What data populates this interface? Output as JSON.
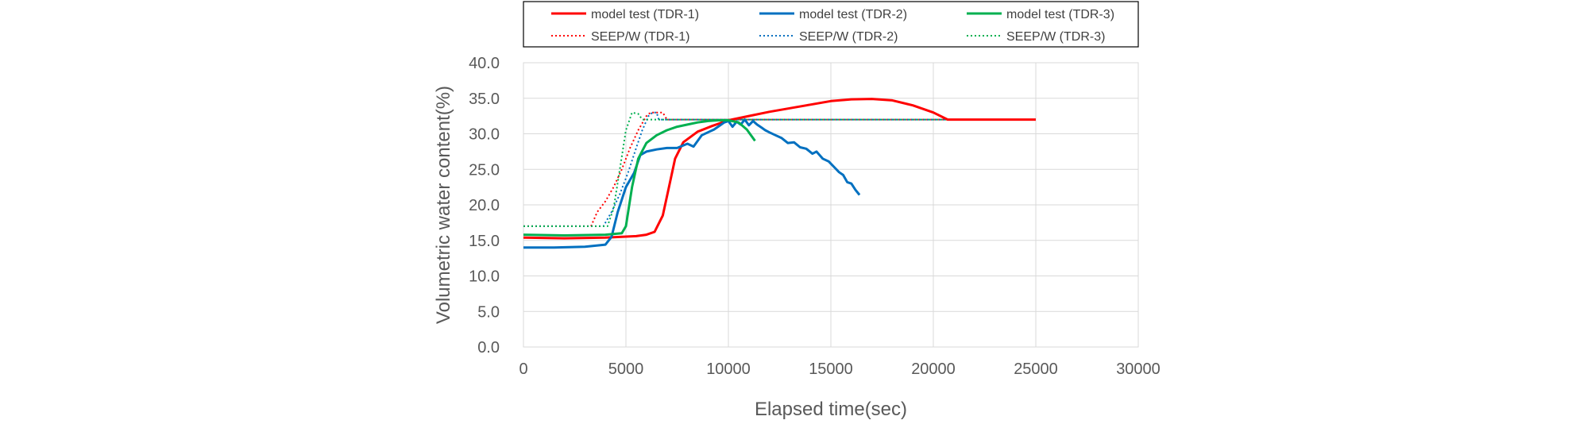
{
  "chart_data": {
    "type": "line",
    "title": "",
    "xlabel": "Elapsed time(sec)",
    "ylabel": "Volumetric water content(%)",
    "xlim": [
      0,
      30000
    ],
    "ylim": [
      0,
      40
    ],
    "x_ticks": [
      0,
      5000,
      10000,
      15000,
      20000,
      25000,
      30000
    ],
    "y_ticks": [
      "0.0",
      "5.0",
      "10.0",
      "15.0",
      "20.0",
      "25.0",
      "30.0",
      "35.0",
      "40.0"
    ],
    "grid": true,
    "legend_position": "top",
    "series": [
      {
        "name": "model test (TDR-1)",
        "color": "#ff0000",
        "style": "solid",
        "points": [
          [
            0,
            15.4
          ],
          [
            2000,
            15.3
          ],
          [
            4000,
            15.4
          ],
          [
            5500,
            15.6
          ],
          [
            6000,
            15.8
          ],
          [
            6400,
            16.2
          ],
          [
            6800,
            18.5
          ],
          [
            7100,
            22.5
          ],
          [
            7400,
            26.5
          ],
          [
            7800,
            28.8
          ],
          [
            8500,
            30.3
          ],
          [
            9200,
            31.1
          ],
          [
            10000,
            31.9
          ],
          [
            11000,
            32.5
          ],
          [
            12000,
            33.1
          ],
          [
            13000,
            33.6
          ],
          [
            14000,
            34.1
          ],
          [
            15000,
            34.6
          ],
          [
            16000,
            34.85
          ],
          [
            17000,
            34.9
          ],
          [
            18000,
            34.7
          ],
          [
            19000,
            34.0
          ],
          [
            20000,
            33.0
          ],
          [
            20700,
            32.0
          ],
          [
            25000,
            32.0
          ]
        ]
      },
      {
        "name": "model test (TDR-2)",
        "color": "#0070c0",
        "style": "solid",
        "points": [
          [
            0,
            14.0
          ],
          [
            1500,
            14.0
          ],
          [
            3000,
            14.1
          ],
          [
            4000,
            14.4
          ],
          [
            4300,
            15.5
          ],
          [
            4600,
            19.0
          ],
          [
            5000,
            22.5
          ],
          [
            5400,
            24.5
          ],
          [
            5700,
            27.0
          ],
          [
            6000,
            27.5
          ],
          [
            6500,
            27.8
          ],
          [
            7000,
            28.0
          ],
          [
            7500,
            28.0
          ],
          [
            8000,
            28.6
          ],
          [
            8300,
            28.2
          ],
          [
            8700,
            29.8
          ],
          [
            9000,
            30.2
          ],
          [
            9300,
            30.6
          ],
          [
            9600,
            31.2
          ],
          [
            9800,
            31.6
          ],
          [
            10000,
            31.8
          ],
          [
            10200,
            31.0
          ],
          [
            10400,
            31.7
          ],
          [
            10600,
            31.3
          ],
          [
            10800,
            32.0
          ],
          [
            11000,
            31.2
          ],
          [
            11200,
            31.8
          ],
          [
            11400,
            31.3
          ],
          [
            11600,
            30.9
          ],
          [
            11800,
            30.5
          ],
          [
            12000,
            30.2
          ],
          [
            12300,
            29.8
          ],
          [
            12600,
            29.4
          ],
          [
            12900,
            28.7
          ],
          [
            13200,
            28.8
          ],
          [
            13500,
            28.1
          ],
          [
            13800,
            27.9
          ],
          [
            14100,
            27.2
          ],
          [
            14300,
            27.5
          ],
          [
            14600,
            26.5
          ],
          [
            14900,
            26.1
          ],
          [
            15200,
            25.2
          ],
          [
            15400,
            24.6
          ],
          [
            15600,
            24.2
          ],
          [
            15800,
            23.2
          ],
          [
            16000,
            23.0
          ],
          [
            16200,
            22.1
          ],
          [
            16400,
            21.4
          ]
        ]
      },
      {
        "name": "model test (TDR-3)",
        "color": "#00b050",
        "style": "solid",
        "points": [
          [
            0,
            15.8
          ],
          [
            2000,
            15.7
          ],
          [
            4000,
            15.8
          ],
          [
            4800,
            16.0
          ],
          [
            5000,
            17.0
          ],
          [
            5300,
            22.5
          ],
          [
            5600,
            26.5
          ],
          [
            6000,
            28.7
          ],
          [
            6500,
            29.8
          ],
          [
            7000,
            30.5
          ],
          [
            7500,
            31.0
          ],
          [
            8000,
            31.3
          ],
          [
            8500,
            31.6
          ],
          [
            9000,
            31.8
          ],
          [
            9500,
            31.9
          ],
          [
            10000,
            31.9
          ],
          [
            10500,
            31.6
          ],
          [
            10900,
            30.6
          ],
          [
            11300,
            29.0
          ]
        ]
      },
      {
        "name": "SEEP/W (TDR-1)",
        "color": "#ff0000",
        "style": "dotted",
        "points": [
          [
            0,
            17.0
          ],
          [
            3300,
            17.0
          ],
          [
            3600,
            19.0
          ],
          [
            4000,
            20.5
          ],
          [
            4400,
            22.5
          ],
          [
            4800,
            25.0
          ],
          [
            5200,
            28.0
          ],
          [
            5600,
            30.5
          ],
          [
            6000,
            32.5
          ],
          [
            6200,
            33.0
          ],
          [
            6800,
            33.0
          ],
          [
            7000,
            32.0
          ],
          [
            25000,
            32.0
          ]
        ]
      },
      {
        "name": "SEEP/W (TDR-2)",
        "color": "#0070c0",
        "style": "dotted",
        "points": [
          [
            0,
            17.0
          ],
          [
            3900,
            17.0
          ],
          [
            4300,
            19.0
          ],
          [
            4700,
            21.5
          ],
          [
            5100,
            24.5
          ],
          [
            5500,
            28.0
          ],
          [
            5800,
            30.5
          ],
          [
            6100,
            32.5
          ],
          [
            6300,
            33.0
          ],
          [
            6500,
            33.0
          ],
          [
            6600,
            32.0
          ],
          [
            25000,
            32.0
          ]
        ]
      },
      {
        "name": "SEEP/W (TDR-3)",
        "color": "#00b050",
        "style": "dotted",
        "points": [
          [
            0,
            17.0
          ],
          [
            4100,
            17.0
          ],
          [
            4400,
            19.5
          ],
          [
            4700,
            25.0
          ],
          [
            5000,
            30.5
          ],
          [
            5300,
            33.0
          ],
          [
            5600,
            32.8
          ],
          [
            5800,
            32.0
          ],
          [
            25000,
            32.0
          ]
        ]
      }
    ]
  }
}
